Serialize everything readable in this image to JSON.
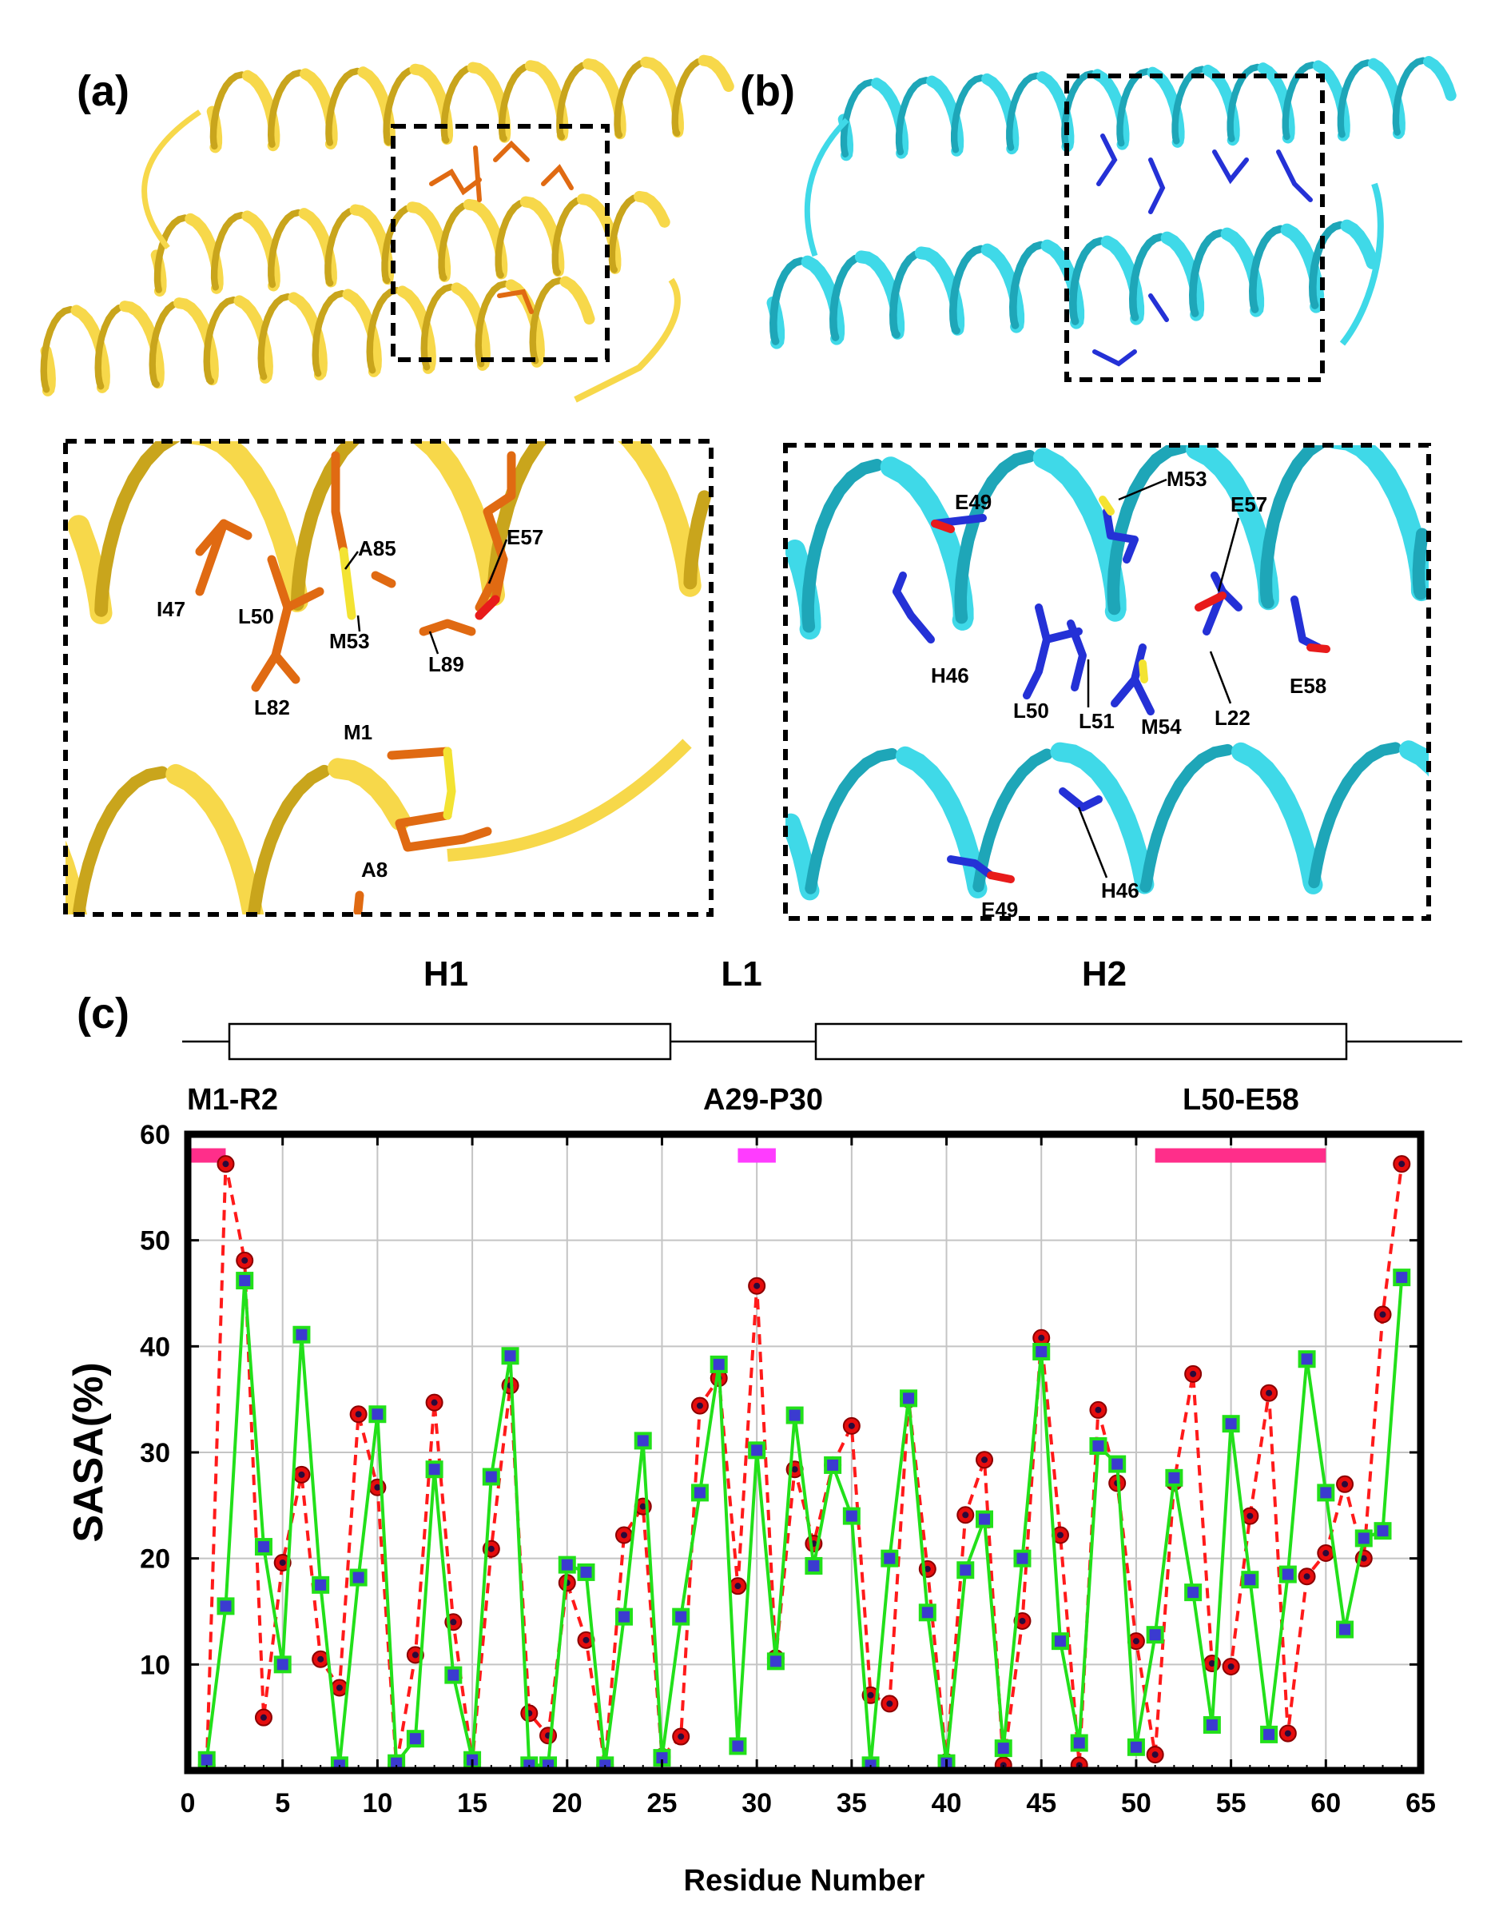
{
  "panels": {
    "a": {
      "label": "(a)"
    },
    "b": {
      "label": "(b)"
    },
    "c": {
      "label": "(c)"
    }
  },
  "colors": {
    "ribbon_a": "#f7d84a",
    "ribbon_a_dark": "#c9a51c",
    "stick_a": "#e06a12",
    "ribbon_b": "#3fd9e8",
    "ribbon_b_dark": "#1ea6b8",
    "stick_b": "#2431d6",
    "oxygen": "#e81b1b",
    "sulfur": "#f3e332",
    "series1_line": "#ff1a1a",
    "series1_marker": "#e50d0d",
    "series2_line": "#22e01a",
    "series2_marker": "#3b3bd0",
    "bar_pink": "#ff2e8a",
    "bar_magenta": "#ff3cff"
  },
  "zoom_a_labels": [
    "I47",
    "L50",
    "M53",
    "A85",
    "E57",
    "L89",
    "L82",
    "M1",
    "A8"
  ],
  "zoom_b_labels": [
    "E49",
    "M53",
    "E57",
    "H46",
    "L50",
    "L51",
    "M54",
    "L22",
    "E58",
    "H46",
    "E49"
  ],
  "secondary_structure": {
    "segments": [
      "H1",
      "L1",
      "H2"
    ],
    "ranges": [
      "M1-R2",
      "A29-P30",
      "L50-E58"
    ]
  },
  "chart_data": {
    "type": "line",
    "ylabel": "SASA(%)",
    "xlabel": "Residue Number",
    "xlim": [
      0,
      65
    ],
    "ylim": [
      0,
      60
    ],
    "xticks": [
      "0",
      "5",
      "10",
      "15",
      "20",
      "25",
      "30",
      "35",
      "40",
      "45",
      "50",
      "55",
      "60",
      "65"
    ],
    "yticks": [
      "10",
      "20",
      "30",
      "40",
      "50",
      "60"
    ],
    "grid": true,
    "highlight_bars": [
      {
        "range": [
          0,
          2
        ],
        "y": 58,
        "color": "#ff2e8a"
      },
      {
        "range": [
          29,
          31
        ],
        "y": 58,
        "color": "#ff3cff"
      },
      {
        "range": [
          51,
          60
        ],
        "y": 58,
        "color": "#ff2e8a"
      }
    ],
    "series": [
      {
        "style": "dashed-circle",
        "x": [
          1,
          2,
          3,
          4,
          5,
          6,
          7,
          8,
          9,
          10,
          11,
          12,
          13,
          14,
          15,
          16,
          17,
          18,
          19,
          20,
          21,
          22,
          23,
          24,
          25,
          26,
          27,
          28,
          29,
          30,
          31,
          32,
          33,
          34,
          35,
          36,
          37,
          38,
          39,
          40,
          41,
          42,
          43,
          44,
          45,
          46,
          47,
          48,
          49,
          50,
          51,
          52,
          53,
          54,
          55,
          56,
          57,
          58,
          59,
          60,
          61,
          62,
          63,
          64
        ],
        "values": [
          0.5,
          57.2,
          48.1,
          5.0,
          19.6,
          27.9,
          10.5,
          7.8,
          33.6,
          26.7,
          0.5,
          10.9,
          34.7,
          14.0,
          0.8,
          20.9,
          36.3,
          5.4,
          3.3,
          17.7,
          12.3,
          0.5,
          22.2,
          24.9,
          1.3,
          3.2,
          34.4,
          37.0,
          17.4,
          45.7,
          10.6,
          28.4,
          21.4,
          28.8,
          32.5,
          7.1,
          6.3,
          35.0,
          19.0,
          0.8,
          24.1,
          29.3,
          0.5,
          14.1,
          40.8,
          22.2,
          0.5,
          34.0,
          27.1,
          12.2,
          1.5,
          27.2,
          37.4,
          10.1,
          9.8,
          24.0,
          35.6,
          3.5,
          18.3,
          20.5,
          27.0,
          20.0,
          43.0,
          57.2
        ]
      },
      {
        "style": "solid-square",
        "x": [
          1,
          2,
          3,
          4,
          5,
          6,
          7,
          8,
          9,
          10,
          11,
          12,
          13,
          14,
          15,
          16,
          17,
          18,
          19,
          20,
          21,
          22,
          23,
          24,
          25,
          26,
          27,
          28,
          29,
          30,
          31,
          32,
          33,
          34,
          35,
          36,
          37,
          38,
          39,
          40,
          41,
          42,
          43,
          44,
          45,
          46,
          47,
          48,
          49,
          50,
          51,
          52,
          53,
          54,
          55,
          56,
          57,
          58,
          59,
          60,
          61,
          62,
          63,
          64
        ],
        "values": [
          1.0,
          15.5,
          46.2,
          21.1,
          10.0,
          41.1,
          17.5,
          0.5,
          18.2,
          33.6,
          0.7,
          3.0,
          28.4,
          9.0,
          1.0,
          27.7,
          39.1,
          0.5,
          0.5,
          19.4,
          18.7,
          0.5,
          14.5,
          31.1,
          1.2,
          14.5,
          26.2,
          38.3,
          2.3,
          30.2,
          10.3,
          33.5,
          19.3,
          28.8,
          24.0,
          0.5,
          20.0,
          35.1,
          14.9,
          0.7,
          18.9,
          23.7,
          2.1,
          20.0,
          39.5,
          12.2,
          2.6,
          30.6,
          28.9,
          2.2,
          12.8,
          27.6,
          16.8,
          4.3,
          32.7,
          18.0,
          3.4,
          18.5,
          38.8,
          26.2,
          13.3,
          21.9,
          22.6,
          46.5
        ]
      }
    ]
  }
}
